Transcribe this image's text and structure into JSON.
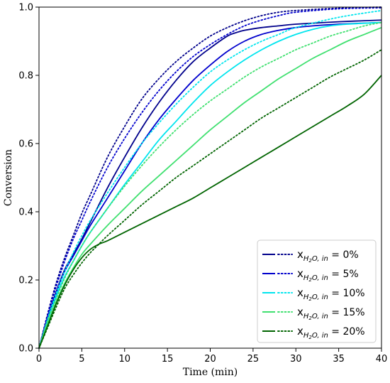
{
  "chart_data": {
    "type": "line",
    "xlabel": "Time (min)",
    "ylabel": "Conversion",
    "xlim": [
      0,
      40
    ],
    "ylim": [
      0,
      1.0
    ],
    "x_ticks": [
      0,
      5,
      10,
      15,
      20,
      25,
      30,
      35,
      40
    ],
    "y_ticks": [
      0.0,
      0.2,
      0.4,
      0.6,
      0.8,
      1.0
    ],
    "grid": false,
    "legend_position": "lower-right",
    "legend_entries": [
      "0%",
      "5%",
      "10%",
      "15%",
      "20%"
    ],
    "legend_label_base": "x",
    "legend_label_subscript": "H",
    "legend_label_subscript2": "2",
    "legend_label_subscript3": "O, in",
    "legend_label_eq": " = ",
    "series": [
      {
        "color": "#00008B",
        "solid_x": [
          0,
          1,
          2,
          3,
          4,
          5,
          6,
          8,
          10,
          12,
          14,
          16,
          18,
          20,
          22,
          23,
          24,
          26,
          28,
          30,
          35,
          40
        ],
        "solid_y": [
          0,
          0.09,
          0.165,
          0.23,
          0.275,
          0.32,
          0.37,
          0.47,
          0.56,
          0.645,
          0.72,
          0.785,
          0.84,
          0.88,
          0.915,
          0.925,
          0.932,
          0.94,
          0.945,
          0.95,
          0.957,
          0.962
        ],
        "dotted_x": [
          0,
          1,
          2,
          3,
          4,
          5,
          6,
          8,
          10,
          12,
          14,
          16,
          18,
          20,
          22,
          24,
          26,
          28,
          30,
          35,
          40
        ],
        "dotted_y": [
          0,
          0.1,
          0.19,
          0.265,
          0.33,
          0.395,
          0.45,
          0.56,
          0.65,
          0.73,
          0.79,
          0.84,
          0.88,
          0.915,
          0.94,
          0.96,
          0.975,
          0.985,
          0.99,
          0.997,
          1.0
        ]
      },
      {
        "color": "#0000CD",
        "solid_x": [
          0,
          1,
          2,
          3,
          4,
          5,
          6,
          8,
          10,
          12,
          14,
          16,
          18,
          20,
          22,
          24,
          26,
          28,
          30,
          32,
          35,
          40
        ],
        "solid_y": [
          0,
          0.085,
          0.16,
          0.225,
          0.27,
          0.315,
          0.36,
          0.44,
          0.52,
          0.6,
          0.67,
          0.73,
          0.785,
          0.83,
          0.87,
          0.9,
          0.92,
          0.932,
          0.94,
          0.945,
          0.95,
          0.955
        ],
        "dotted_x": [
          0,
          1,
          2,
          3,
          4,
          5,
          6,
          8,
          10,
          12,
          14,
          16,
          18,
          20,
          22,
          24,
          26,
          28,
          30,
          35,
          40
        ],
        "dotted_y": [
          0,
          0.095,
          0.18,
          0.255,
          0.32,
          0.375,
          0.43,
          0.53,
          0.615,
          0.69,
          0.755,
          0.81,
          0.855,
          0.89,
          0.92,
          0.945,
          0.962,
          0.975,
          0.985,
          0.995,
          0.998
        ]
      },
      {
        "color": "#00E5EE",
        "solid_x": [
          0,
          1,
          2,
          3,
          4,
          5,
          6,
          8,
          10,
          12,
          14,
          16,
          18,
          20,
          22,
          24,
          26,
          28,
          30,
          32,
          34,
          36,
          40
        ],
        "solid_y": [
          0,
          0.08,
          0.15,
          0.21,
          0.255,
          0.3,
          0.34,
          0.41,
          0.48,
          0.545,
          0.61,
          0.665,
          0.72,
          0.77,
          0.81,
          0.845,
          0.875,
          0.9,
          0.92,
          0.935,
          0.945,
          0.95,
          0.955
        ],
        "dotted_x": [
          0,
          1,
          2,
          3,
          4,
          5,
          6,
          8,
          10,
          12,
          14,
          16,
          18,
          20,
          22,
          24,
          26,
          28,
          30,
          35,
          40
        ],
        "dotted_y": [
          0,
          0.085,
          0.16,
          0.225,
          0.28,
          0.33,
          0.375,
          0.455,
          0.53,
          0.6,
          0.66,
          0.715,
          0.765,
          0.81,
          0.845,
          0.875,
          0.9,
          0.92,
          0.94,
          0.97,
          0.99
        ]
      },
      {
        "color": "#40E070",
        "solid_x": [
          0,
          1,
          2,
          3,
          4,
          5,
          6,
          8,
          10,
          12,
          14,
          16,
          18,
          20,
          22,
          24,
          26,
          28,
          30,
          32,
          34,
          36,
          38,
          40
        ],
        "solid_y": [
          0,
          0.07,
          0.135,
          0.19,
          0.235,
          0.275,
          0.305,
          0.36,
          0.41,
          0.46,
          0.505,
          0.55,
          0.595,
          0.64,
          0.68,
          0.72,
          0.755,
          0.79,
          0.82,
          0.85,
          0.875,
          0.9,
          0.92,
          0.94
        ],
        "dotted_x": [
          0,
          1,
          2,
          3,
          4,
          5,
          6,
          8,
          10,
          12,
          14,
          16,
          18,
          20,
          22,
          24,
          26,
          28,
          30,
          32,
          34,
          36,
          38,
          40
        ],
        "dotted_y": [
          0,
          0.08,
          0.145,
          0.205,
          0.255,
          0.3,
          0.34,
          0.41,
          0.475,
          0.535,
          0.59,
          0.64,
          0.685,
          0.725,
          0.76,
          0.795,
          0.825,
          0.85,
          0.875,
          0.895,
          0.915,
          0.93,
          0.945,
          0.955
        ]
      },
      {
        "color": "#006400",
        "solid_x": [
          0,
          1,
          2,
          3,
          4,
          5,
          6,
          7,
          8,
          10,
          12,
          14,
          16,
          18,
          20,
          22,
          24,
          26,
          28,
          30,
          32,
          34,
          36,
          38,
          40
        ],
        "solid_y": [
          0,
          0.065,
          0.13,
          0.185,
          0.23,
          0.265,
          0.29,
          0.305,
          0.315,
          0.34,
          0.365,
          0.39,
          0.415,
          0.44,
          0.47,
          0.5,
          0.53,
          0.56,
          0.59,
          0.62,
          0.65,
          0.68,
          0.71,
          0.745,
          0.8
        ],
        "dotted_x": [
          0,
          1,
          2,
          3,
          4,
          5,
          6,
          7,
          8,
          10,
          12,
          14,
          16,
          18,
          20,
          22,
          24,
          26,
          28,
          30,
          32,
          34,
          36,
          38,
          40
        ],
        "dotted_y": [
          0,
          0.06,
          0.12,
          0.175,
          0.215,
          0.25,
          0.28,
          0.305,
          0.33,
          0.375,
          0.42,
          0.46,
          0.5,
          0.535,
          0.57,
          0.605,
          0.64,
          0.675,
          0.705,
          0.735,
          0.765,
          0.795,
          0.82,
          0.845,
          0.875
        ]
      }
    ]
  }
}
